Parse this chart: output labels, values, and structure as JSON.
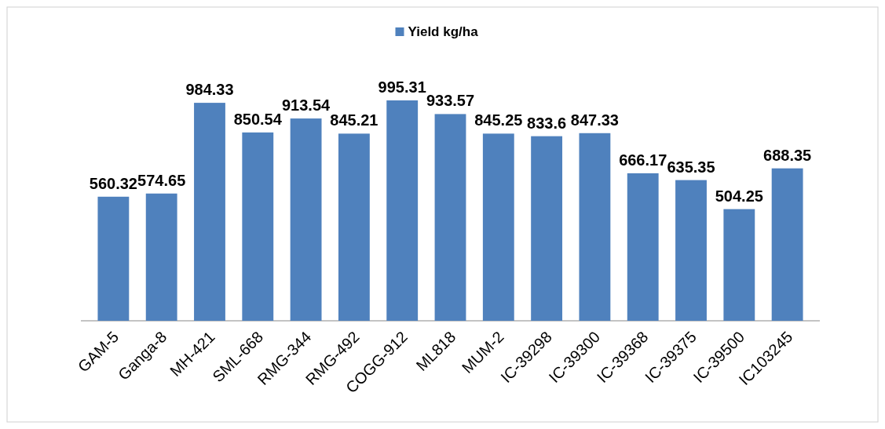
{
  "chart_data": {
    "type": "bar",
    "categories": [
      "GAM-5",
      "Ganga-8",
      "MH-421",
      "SML-668",
      "RMG-344",
      "RMG-492",
      "COGG-912",
      "ML818",
      "MUM-2",
      "IC-39298",
      "IC-39300",
      "IC-39368",
      "IC-39375",
      "IC-39500",
      "IC103245"
    ],
    "series": [
      {
        "name": "Yield kg/ha",
        "color": "#4f81bd",
        "values": [
          560.32,
          574.65,
          984.33,
          850.54,
          913.54,
          845.21,
          995.31,
          933.57,
          845.25,
          833.6,
          847.33,
          666.17,
          635.35,
          504.25,
          688.35
        ]
      }
    ],
    "data_labels": true,
    "legend": "top",
    "grid": false
  }
}
